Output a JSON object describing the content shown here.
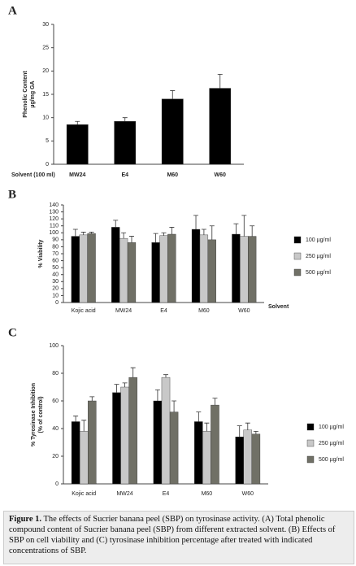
{
  "chart_data": [
    {
      "type": "bar",
      "panel": "A",
      "ylabel": [
        "Phenolic Content",
        "µg/mg GA"
      ],
      "xlabel": "Solvent (100 ml)",
      "categories": [
        "MW24",
        "E4",
        "M60",
        "W60"
      ],
      "values": [
        8.5,
        9.2,
        14,
        16.3
      ],
      "errors": [
        0.7,
        0.8,
        1.8,
        3
      ],
      "color": "#000000",
      "ylim": [
        0,
        30
      ],
      "yticks": [
        0,
        5,
        10,
        15,
        20,
        25,
        30
      ]
    },
    {
      "type": "bar",
      "panel": "B",
      "ylabel": [
        "% Viability"
      ],
      "xlabel": "Solvent",
      "categories": [
        "Kojic acid",
        "MW24",
        "E4",
        "M60",
        "W60"
      ],
      "series": [
        {
          "name": "100 µg/ml",
          "color": "#000000",
          "values": [
            95,
            108,
            86,
            105,
            98
          ],
          "errors": [
            10,
            10,
            13,
            20,
            15
          ]
        },
        {
          "name": "250 µg/ml",
          "color": "#c8c8c8",
          "values": [
            97,
            92,
            96,
            97,
            95
          ],
          "errors": [
            4,
            8,
            4,
            8,
            30
          ]
        },
        {
          "name": "500 µg/ml",
          "color": "#707066",
          "values": [
            99,
            86,
            98,
            90,
            95
          ],
          "errors": [
            2,
            9,
            10,
            20,
            15
          ]
        }
      ],
      "ylim": [
        0,
        140
      ],
      "yticks": [
        0,
        10,
        20,
        30,
        40,
        50,
        60,
        70,
        80,
        90,
        100,
        110,
        120,
        130,
        140
      ]
    },
    {
      "type": "bar",
      "panel": "C",
      "ylabel": [
        "% Tyrosinase Inhibition",
        "(% of control)"
      ],
      "categories": [
        "Kojic acid",
        "MW24",
        "E4",
        "M60",
        "W60"
      ],
      "series": [
        {
          "name": "100 µg/ml",
          "color": "#000000",
          "values": [
            45,
            66,
            60,
            45,
            34
          ],
          "errors": [
            4,
            6,
            8,
            7,
            8
          ]
        },
        {
          "name": "250 µg/ml",
          "color": "#c8c8c8",
          "values": [
            38,
            70,
            77,
            38,
            39
          ],
          "errors": [
            8,
            3,
            2,
            6,
            5
          ]
        },
        {
          "name": "500 µg/ml",
          "color": "#707066",
          "values": [
            60,
            77,
            52,
            57,
            36
          ],
          "errors": [
            3,
            7,
            8,
            5,
            2
          ]
        }
      ],
      "ylim": [
        0,
        100
      ],
      "yticks": [
        0,
        20,
        40,
        60,
        80,
        100
      ]
    }
  ],
  "caption": {
    "label": "Figure 1.",
    "text": "The effects of Sucrier banana peel (SBP) on tyrosinase activity. (A) Total phenolic compound content of Sucrier banana peel (SBP) from different extracted solvent. (B) Effects of SBP on cell viability and (C) tyrosinase inhibition percentage after treated with indicated concentrations of SBP."
  }
}
